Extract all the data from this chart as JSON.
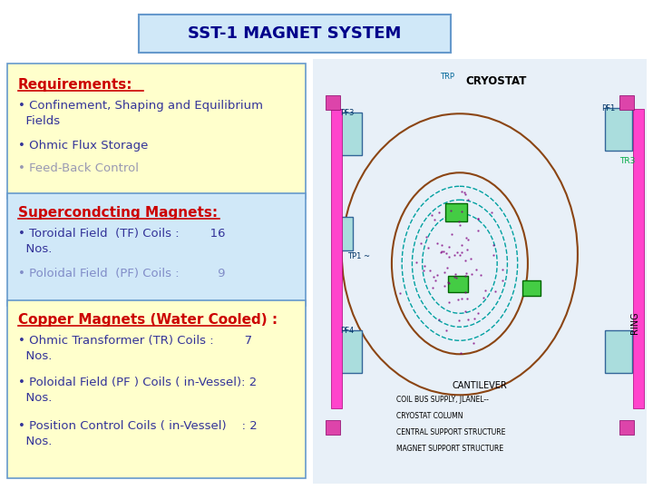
{
  "title": "SST-1 MAGNET SYSTEM",
  "title_bg": "#d0e8f8",
  "title_color": "#00008B",
  "title_border": "#6699cc",
  "bg_color": "#ffffff",
  "req_box_bg": "#ffffcc",
  "req_box_border": "#6699cc",
  "req_header": "Requirements:",
  "req_header_color": "#cc0000",
  "req_item_color": "#333399",
  "sc_box_bg": "#d0e8f8",
  "sc_box_border": "#6699cc",
  "sc_header": "Supercondcting Magnets:",
  "sc_header_color": "#cc0000",
  "sc_item_color": "#333399",
  "cu_box_bg": "#ffffcc",
  "cu_box_border": "#6699cc",
  "cu_header": "Copper Magnets (Water Cooled) :",
  "cu_header_color": "#cc0000",
  "cu_item_color": "#333399",
  "diagram_placeholder_color": "#e8f0f8"
}
